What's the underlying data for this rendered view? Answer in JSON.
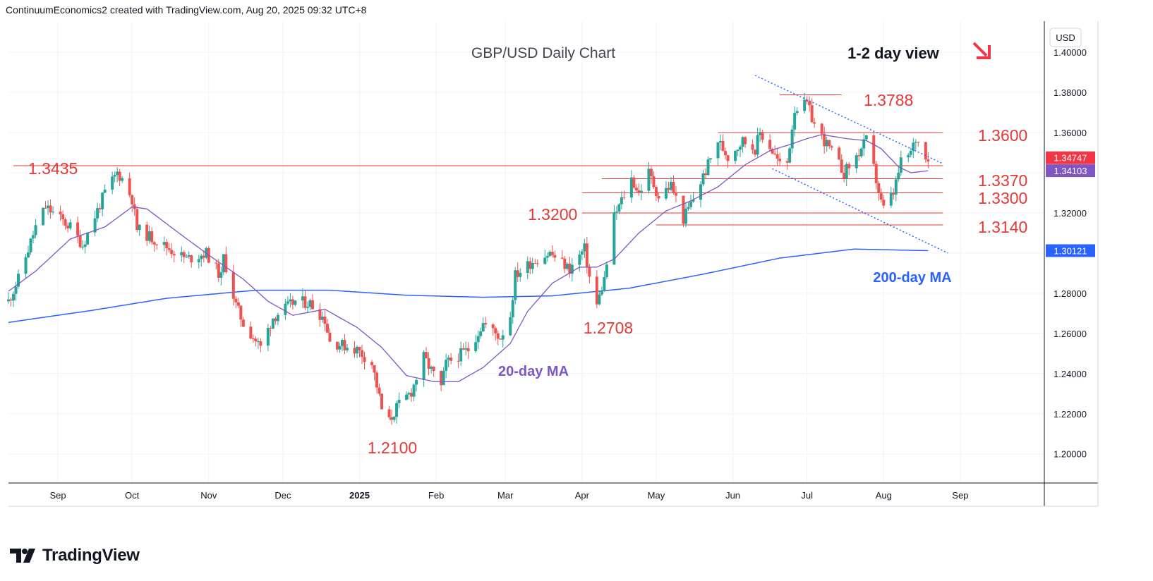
{
  "header": {
    "created_by": "ContinuumEconomics2 created with TradingView.com, Aug 20, 2025 09:32 UTC+8"
  },
  "brand": {
    "logo_text": "TradingView"
  },
  "colors": {
    "bull": "#26a69a",
    "bear": "#ef5350",
    "level_line": "#e53935",
    "level_text": "#e53935",
    "ma20": "#7e57c2",
    "ma200": "#2962ff",
    "trend": "#2962ff",
    "arrow": "#f23645"
  },
  "chart_data": {
    "type": "candlestick",
    "title": "GBP/USD Daily Chart",
    "subtitle": "1-2 day view",
    "currency_label": "USD",
    "ylim": [
      1.1855,
      1.4155
    ],
    "y_ticks": [
      "1.40000",
      "1.38000",
      "1.36000",
      "1.34000",
      "1.32000",
      "1.30000",
      "1.28000",
      "1.26000",
      "1.24000",
      "1.22000",
      "1.20000"
    ],
    "y_tick_values": [
      1.4,
      1.38,
      1.36,
      1.34,
      1.32,
      1.3,
      1.28,
      1.26,
      1.24,
      1.22,
      1.2
    ],
    "x_ticks": [
      "Sep",
      "Oct",
      "Nov",
      "Dec",
      "2025",
      "Feb",
      "Mar",
      "Apr",
      "May",
      "Jun",
      "Jul",
      "Aug",
      "Sep"
    ],
    "x_tick_dates": [
      "2024-09-01",
      "2024-10-01",
      "2024-11-01",
      "2024-12-01",
      "2025-01-01",
      "2025-02-01",
      "2025-03-01",
      "2025-04-01",
      "2025-05-01",
      "2025-06-01",
      "2025-07-01",
      "2025-08-01",
      "2025-09-01"
    ],
    "x_range": [
      "2024-08-12",
      "2025-10-05"
    ],
    "close_waypoints": [
      [
        "2024-08-12",
        1.276
      ],
      [
        "2024-08-16",
        1.287
      ],
      [
        "2024-08-23",
        1.313
      ],
      [
        "2024-08-27",
        1.323
      ],
      [
        "2024-09-06",
        1.313
      ],
      [
        "2024-09-11",
        1.304
      ],
      [
        "2024-09-20",
        1.33
      ],
      [
        "2024-09-25",
        1.34
      ],
      [
        "2024-09-27",
        1.337
      ],
      [
        "2024-10-01",
        1.327
      ],
      [
        "2024-10-03",
        1.312
      ],
      [
        "2024-10-11",
        1.306
      ],
      [
        "2024-10-23",
        1.297
      ],
      [
        "2024-10-31",
        1.3
      ],
      [
        "2024-11-06",
        1.288
      ],
      [
        "2024-11-07",
        1.298
      ],
      [
        "2024-11-12",
        1.274
      ],
      [
        "2024-11-15",
        1.265
      ],
      [
        "2024-11-22",
        1.253
      ],
      [
        "2024-11-27",
        1.268
      ],
      [
        "2024-12-06",
        1.276
      ],
      [
        "2024-12-12",
        1.275
      ],
      [
        "2024-12-18",
        1.267
      ],
      [
        "2024-12-20",
        1.256
      ],
      [
        "2024-12-31",
        1.252
      ],
      [
        "2025-01-06",
        1.245
      ],
      [
        "2025-01-08",
        1.234
      ],
      [
        "2025-01-10",
        1.222
      ],
      [
        "2025-01-13",
        1.216
      ],
      [
        "2025-01-16",
        1.223
      ],
      [
        "2025-01-22",
        1.231
      ],
      [
        "2025-01-27",
        1.248
      ],
      [
        "2025-02-03",
        1.233
      ],
      [
        "2025-02-05",
        1.245
      ],
      [
        "2025-02-14",
        1.252
      ],
      [
        "2025-02-20",
        1.265
      ],
      [
        "2025-02-27",
        1.258
      ],
      [
        "2025-03-03",
        1.269
      ],
      [
        "2025-03-05",
        1.289
      ],
      [
        "2025-03-12",
        1.296
      ],
      [
        "2025-03-19",
        1.3
      ],
      [
        "2025-03-27",
        1.292
      ],
      [
        "2025-04-02",
        1.302
      ],
      [
        "2025-04-04",
        1.288
      ],
      [
        "2025-04-07",
        1.274
      ],
      [
        "2025-04-10",
        1.287
      ],
      [
        "2025-04-14",
        1.318
      ],
      [
        "2025-04-21",
        1.337
      ],
      [
        "2025-04-24",
        1.33
      ],
      [
        "2025-04-28",
        1.34
      ],
      [
        "2025-05-02",
        1.328
      ],
      [
        "2025-05-07",
        1.334
      ],
      [
        "2025-05-12",
        1.317
      ],
      [
        "2025-05-16",
        1.327
      ],
      [
        "2025-05-21",
        1.341
      ],
      [
        "2025-05-26",
        1.356
      ],
      [
        "2025-05-30",
        1.348
      ],
      [
        "2025-06-05",
        1.356
      ],
      [
        "2025-06-10",
        1.352
      ],
      [
        "2025-06-12",
        1.36
      ],
      [
        "2025-06-16",
        1.353
      ],
      [
        "2025-06-20",
        1.344
      ],
      [
        "2025-06-23",
        1.345
      ],
      [
        "2025-06-26",
        1.372
      ],
      [
        "2025-07-01",
        1.374
      ],
      [
        "2025-07-04",
        1.364
      ],
      [
        "2025-07-11",
        1.35
      ],
      [
        "2025-07-16",
        1.34
      ],
      [
        "2025-07-21",
        1.348
      ],
      [
        "2025-07-25",
        1.356
      ],
      [
        "2025-07-28",
        1.342
      ],
      [
        "2025-07-31",
        1.325
      ],
      [
        "2025-08-01",
        1.322
      ],
      [
        "2025-08-05",
        1.33
      ],
      [
        "2025-08-08",
        1.345
      ],
      [
        "2025-08-12",
        1.35
      ],
      [
        "2025-08-14",
        1.357
      ],
      [
        "2025-08-19",
        1.3475
      ]
    ],
    "ma20_waypoints": [
      [
        "2024-08-12",
        1.281
      ],
      [
        "2024-08-23",
        1.291
      ],
      [
        "2024-09-06",
        1.307
      ],
      [
        "2024-09-20",
        1.313
      ],
      [
        "2024-10-01",
        1.323
      ],
      [
        "2024-10-07",
        1.322
      ],
      [
        "2024-10-21",
        1.309
      ],
      [
        "2024-11-01",
        1.299
      ],
      [
        "2024-11-15",
        1.287
      ],
      [
        "2024-11-25",
        1.276
      ],
      [
        "2024-12-05",
        1.269
      ],
      [
        "2024-12-18",
        1.272
      ],
      [
        "2024-12-31",
        1.263
      ],
      [
        "2025-01-10",
        1.253
      ],
      [
        "2025-01-20",
        1.239
      ],
      [
        "2025-01-31",
        1.236
      ],
      [
        "2025-02-10",
        1.236
      ],
      [
        "2025-02-20",
        1.243
      ],
      [
        "2025-03-03",
        1.255
      ],
      [
        "2025-03-10",
        1.271
      ],
      [
        "2025-03-20",
        1.285
      ],
      [
        "2025-03-31",
        1.293
      ],
      [
        "2025-04-07",
        1.293
      ],
      [
        "2025-04-14",
        1.297
      ],
      [
        "2025-04-24",
        1.31
      ],
      [
        "2025-05-05",
        1.321
      ],
      [
        "2025-05-15",
        1.326
      ],
      [
        "2025-05-26",
        1.333
      ],
      [
        "2025-06-06",
        1.344
      ],
      [
        "2025-06-16",
        1.351
      ],
      [
        "2025-06-24",
        1.354
      ],
      [
        "2025-07-01",
        1.357
      ],
      [
        "2025-07-07",
        1.359
      ],
      [
        "2025-07-17",
        1.357
      ],
      [
        "2025-07-25",
        1.356
      ],
      [
        "2025-07-31",
        1.352
      ],
      [
        "2025-08-07",
        1.343
      ],
      [
        "2025-08-12",
        1.34
      ],
      [
        "2025-08-19",
        1.341
      ]
    ],
    "ma200_waypoints": [
      [
        "2024-08-12",
        1.2655
      ],
      [
        "2024-09-15",
        1.2715
      ],
      [
        "2024-10-15",
        1.2775
      ],
      [
        "2024-11-20",
        1.2815
      ],
      [
        "2024-12-20",
        1.2815
      ],
      [
        "2025-01-20",
        1.279
      ],
      [
        "2025-02-20",
        1.278
      ],
      [
        "2025-03-20",
        1.2787
      ],
      [
        "2025-04-20",
        1.2825
      ],
      [
        "2025-05-20",
        1.2895
      ],
      [
        "2025-06-20",
        1.2975
      ],
      [
        "2025-07-20",
        1.302
      ],
      [
        "2025-08-19",
        1.3012
      ]
    ],
    "levels": [
      {
        "label": "1.3788",
        "value": 1.3788,
        "from": "2025-06-20",
        "to": "2025-07-15"
      },
      {
        "label": "1.3600",
        "value": 1.36,
        "from": "2025-05-26",
        "to": "2025-08-25"
      },
      {
        "label": "1.3435",
        "value": 1.3435,
        "from": "2024-08-14",
        "to": "2025-08-25"
      },
      {
        "label": "1.3370",
        "value": 1.337,
        "from": "2025-04-09",
        "to": "2025-08-25"
      },
      {
        "label": "1.3300",
        "value": 1.33,
        "from": "2025-04-01",
        "to": "2025-08-25"
      },
      {
        "label": "1.3200",
        "value": 1.32,
        "from": "2025-04-01",
        "to": "2025-08-25"
      },
      {
        "label": "1.3140",
        "value": 1.314,
        "from": "2025-05-01",
        "to": "2025-08-25"
      }
    ],
    "level_labels_extra": [
      {
        "label": "1.2708",
        "value": 1.2708,
        "date": "2025-04-11"
      },
      {
        "label": "1.2100",
        "value": 1.21,
        "date": "2025-01-13"
      }
    ],
    "trend_upper": [
      [
        "2025-06-10",
        1.3885
      ],
      [
        "2025-08-25",
        1.3445
      ]
    ],
    "trend_lower": [
      [
        "2025-06-17",
        1.342
      ],
      [
        "2025-08-27",
        1.3
      ]
    ],
    "price_tags": [
      {
        "label": "1.34747",
        "value": 1.34747,
        "color": "#f23645"
      },
      {
        "label": "1.34103",
        "value": 1.34103,
        "color": "#7e57c2"
      },
      {
        "label": "1.30121",
        "value": 1.30121,
        "color": "#2962ff"
      }
    ],
    "annotations": {
      "ma20_label": "20-day MA",
      "ma200_label": "200-day MA"
    }
  }
}
